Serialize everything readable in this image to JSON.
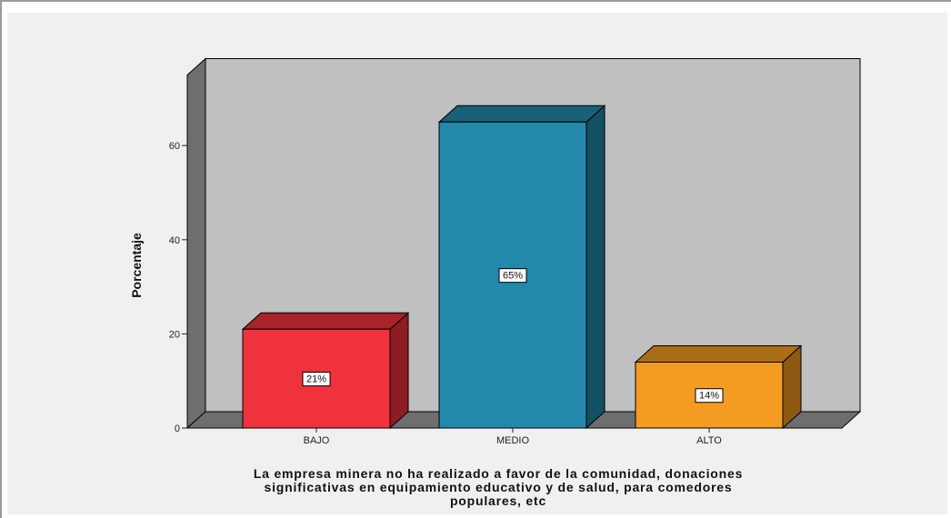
{
  "chart_data": {
    "type": "bar",
    "categories": [
      "BAJO",
      "MEDIO",
      "ALTO"
    ],
    "values": [
      21,
      65,
      14
    ],
    "data_labels": [
      "21%",
      "65%",
      "14%"
    ],
    "colors": [
      "#f0323c",
      "#2389ab",
      "#f39c21"
    ],
    "title": "",
    "ylabel": "Porcentaje",
    "xlabel_lines": [
      "La empresa minera no ha realizado a favor de la comunidad, donaciones",
      "significativas en equipamiento educativo y de salud, para comedores",
      "populares, etc"
    ],
    "ylim": [
      0,
      75
    ],
    "yticks": [
      0,
      20,
      40,
      60
    ],
    "style": "3d",
    "plot_background": "#c0c0c0",
    "grid": false,
    "legend": "none"
  }
}
